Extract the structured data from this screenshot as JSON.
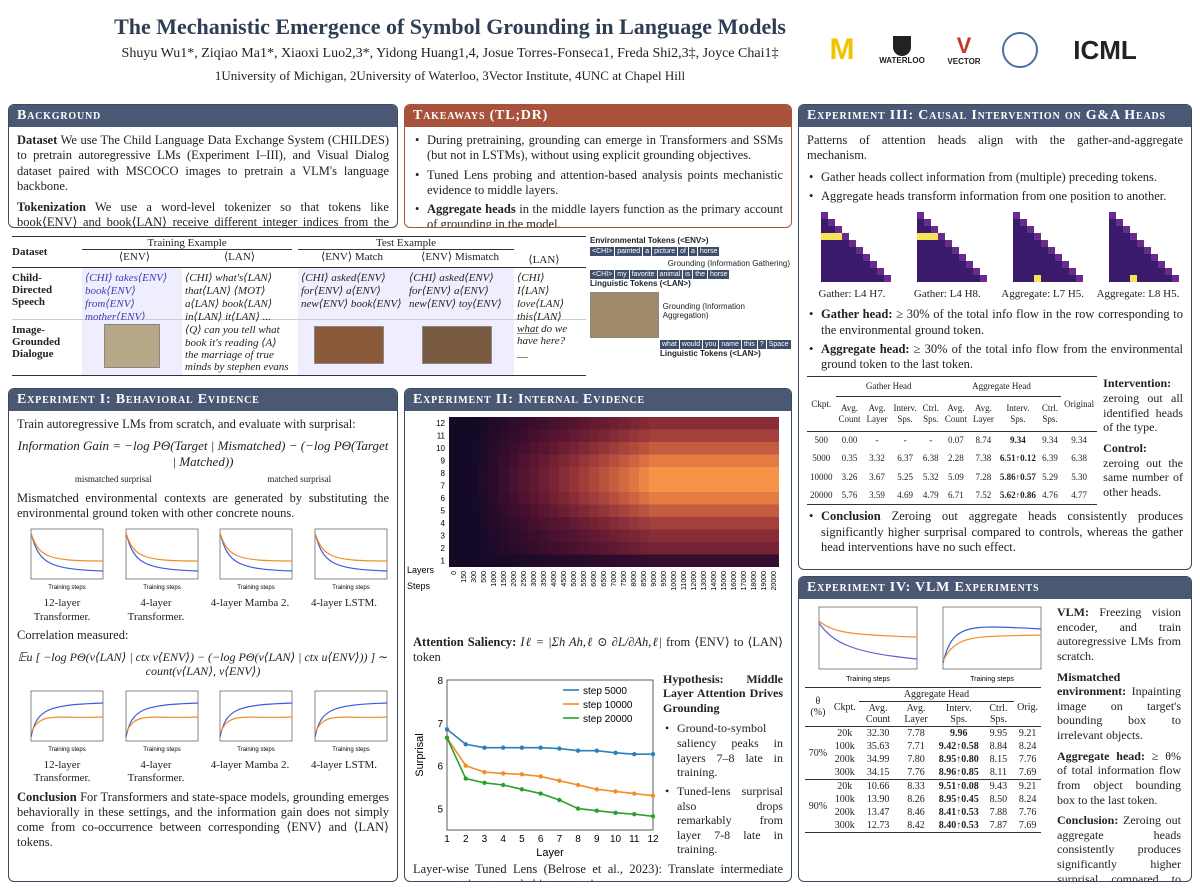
{
  "header": {
    "title": "The Mechanistic Emergence of Symbol Grounding in Language Models",
    "authors": "Shuyu Wu1*, Ziqiao Ma1*, Xiaoxi Luo2,3*, Yidong Huang1,4, Josue Torres-Fonseca1, Freda Shi2,3‡, Joyce Chai1‡",
    "affiliations": "1University of Michigan, 2University of Waterloo, 3Vector Institute, 4UNC at Chapel Hill",
    "logos": [
      "M MICHIGAN",
      "UNIVERSITY OF WATERLOO",
      "VECTOR INSTITUTE",
      "ICML"
    ],
    "icml_sub": "International Conference On Machine Learning"
  },
  "background": {
    "title": "Background",
    "dataset_label": "Dataset",
    "dataset_text": "We use The Child Language Data Exchange System (CHILDES) to pretrain autoregressive LMs (Experiment I–III), and Visual Dialog dataset paired with MSCOCO images to pretrain a VLM's language backbone.",
    "tokenization_label": "Tokenization",
    "tokenization_text": "We use a word-level tokenizer so that tokens like book⟨ENV⟩ and book⟨LAN⟩ receive different integer indices from the tokenizer, and their connections can only be learned from training alone."
  },
  "takeaways": {
    "title": "Takeaways (TL;DR)",
    "items": [
      "During pretraining, grounding can emerge in Transformers and SSMs (but not in LSTMs), without using explicit grounding objectives.",
      "Tuned Lens probing and attention-based analysis points mechanistic evidence to middle layers."
    ],
    "last_bold": "Aggregate heads",
    "last_text": "in the middle layers function as the primary account of grounding in the model."
  },
  "dataset_table": {
    "col_dataset": "Dataset",
    "training_example": "Training Example",
    "test_example": "Test Example",
    "env": "⟨ENV⟩",
    "lan": "⟨LAN⟩",
    "env_match": "⟨ENV⟩ Match",
    "env_mismatch": "⟨ENV⟩ Mismatch",
    "row1_name": "Child-Directed Speech",
    "row1_env": "⟨CHI⟩ takes⟨ENV⟩ book⟨ENV⟩ from⟨ENV⟩ mother⟨ENV⟩",
    "row1_lan": "⟨CHI⟩ what's⟨LAN⟩ that⟨LAN⟩ ⟨MOT⟩ a⟨LAN⟩ book⟨LAN⟩ in⟨LAN⟩ it⟨LAN⟩ ...",
    "row1_match": "⟨CHI⟩ asked⟨ENV⟩ for⟨ENV⟩ a⟨ENV⟩ new⟨ENV⟩ book⟨ENV⟩",
    "row1_mismatch": "⟨CHI⟩ asked⟨ENV⟩ for⟨ENV⟩ a⟨ENV⟩ new⟨ENV⟩ toy⟨ENV⟩",
    "row1_test_lan": "⟨CHI⟩ I⟨LAN⟩ love⟨LAN⟩ this⟨LAN⟩ ____",
    "row2_name": "Image-Grounded Dialogue",
    "row2_lan": "⟨Q⟩ can you tell what book it's reading ⟨A⟩ the marriage of true minds by stephen evans",
    "row2_test_lan": "what do we have here? __"
  },
  "grounding_fig": {
    "env_title": "Environmental Tokens (<ENV>)",
    "env_tokens": [
      "<CHI>",
      "painted",
      "a",
      "picture",
      "of",
      "a",
      "horse"
    ],
    "lan_tokens": [
      "<CHI>",
      "my",
      "favorite",
      "animal",
      "is",
      "the",
      "horse"
    ],
    "gathering": "Grounding (Information Gathering)",
    "lan_title": "Linguistic Tokens (<LAN>)",
    "agg": "Grounding (Information Aggregation)",
    "q_tokens": [
      "what",
      "would",
      "you",
      "name",
      "this",
      "?",
      "Space"
    ],
    "lan_title2": "Linguistic Tokens (<LAN>)"
  },
  "exp1": {
    "title": "Experiment I: Behavioral Evidence",
    "intro": "Train autoregressive LMs from scratch, and evaluate with surprisal:",
    "ig_eq": "Information Gain = −log PΘ(Target | Mismatched) − (−log PΘ(Target | Matched))",
    "mismatched_surprisal": "mismatched surprisal",
    "matched_surprisal": "matched surprisal",
    "mismatch_text": "Mismatched environmental contexts are generated by substituting the environmental ground token with other concrete nouns.",
    "captions": [
      "12-layer Transformer.",
      "4-layer Transformer.",
      "4-layer Mamba 2.",
      "4-layer LSTM."
    ],
    "legend": [
      "Match",
      "Mismatch"
    ],
    "xlabel": "Training steps",
    "ylabel": "Surprisal",
    "correlation_label": "Correlation measured:",
    "corr_eq": "𝔼u [ −log PΘ(v⟨LAN⟩ | ctx v⟨ENV⟩) − (−log PΘ(v⟨LAN⟩ | ctx u⟨ENV⟩)) ] ∼ count(v⟨LAN⟩, v⟨ENV⟩)",
    "legend2": [
      "Information gain",
      "R² value"
    ],
    "conclusion_label": "Conclusion",
    "conclusion": "For Transformers and state-space models, grounding emerges behaviorally in these settings, and the information gain does not simply come from co-occurrence between corresponding ⟨ENV⟩ and ⟨LAN⟩ tokens."
  },
  "exp2": {
    "title": "Experiment II: Internal Evidence",
    "heat_ylabel": "Layers",
    "heat_xlabel": "Steps",
    "layers": [
      "1",
      "2",
      "3",
      "4",
      "5",
      "6",
      "7",
      "8",
      "9",
      "10",
      "11",
      "12"
    ],
    "steps": [
      "0",
      "150",
      "300",
      "500",
      "1000",
      "1500",
      "2000",
      "2500",
      "3000",
      "3500",
      "4000",
      "4500",
      "5000",
      "5500",
      "6000",
      "6500",
      "7000",
      "7500",
      "8000",
      "8500",
      "9000",
      "9500",
      "10000",
      "11000",
      "12000",
      "13000",
      "14000",
      "15000",
      "16000",
      "17000",
      "18000",
      "19000",
      "20000"
    ],
    "saliency_label": "Attention Saliency:",
    "saliency_eq": "Iℓ = |Σh Ah,ℓ ⊙ ∂L/∂Ah,ℓ|",
    "saliency_tail": "from ⟨ENV⟩ to ⟨LAN⟩ token",
    "hyp_title": "Hypothesis: Middle Layer Attention Drives Grounding",
    "hyp_items": [
      "Ground-to-symbol saliency peaks in layers 7–8 late in training.",
      "Tuned-lens surprisal also drops remarkably from layer 7-8 late in training."
    ],
    "lens_caption_bold": "Tuned Lens",
    "lens_caption": "Layer-wise Tuned Lens (Belrose et al., 2023): Translate intermediate representations to verbal interpretations."
  },
  "chart_data": {
    "type": "line",
    "x": [
      1,
      2,
      3,
      4,
      5,
      6,
      7,
      8,
      9,
      10,
      11,
      12
    ],
    "xlabel": "Layer",
    "ylabel": "Surprisal",
    "ylim": [
      4.5,
      8
    ],
    "legend_position": "top-right",
    "series": [
      {
        "name": "step 5000",
        "color": "#2c7fb8",
        "values": [
          6.85,
          6.5,
          6.42,
          6.42,
          6.42,
          6.42,
          6.4,
          6.35,
          6.35,
          6.3,
          6.27,
          6.27
        ]
      },
      {
        "name": "step 10000",
        "color": "#f28c28",
        "values": [
          6.65,
          6.0,
          5.85,
          5.82,
          5.8,
          5.75,
          5.65,
          5.55,
          5.45,
          5.4,
          5.35,
          5.3
        ]
      },
      {
        "name": "step 20000",
        "color": "#2ca02c",
        "values": [
          6.65,
          5.7,
          5.6,
          5.55,
          5.45,
          5.35,
          5.2,
          5.0,
          4.95,
          4.9,
          4.87,
          4.82
        ]
      }
    ]
  },
  "exp3": {
    "title": "Experiment III: Causal Intervention on G&A Heads",
    "intro": "Patterns of attention heads align with the gather-and-aggregate mechanism.",
    "items": [
      "Gather heads collect information from (multiple) preceding tokens.",
      "Aggregate heads transform information from one position to another."
    ],
    "heat_captions": [
      "Gather: L4 H7.",
      "Gather: L4 H8.",
      "Aggregate: L7 H5.",
      "Aggregate: L8 H5."
    ],
    "gather_label": "Gather head:",
    "gather_text": "≥ 30% of the total info flow in the row corresponding to the environmental ground token.",
    "agg_label": "Aggregate head:",
    "agg_text": "≥ 30% of the total info flow from the environmental ground token to the last token.",
    "table_head": [
      "Ckpt.",
      "Gather Head",
      "Aggregate Head",
      "Original"
    ],
    "table_sub": [
      "Avg. Count",
      "Avg. Layer",
      "Interv. Sps.",
      "Ctrl. Sps.",
      "Avg. Count",
      "Avg. Layer",
      "Interv. Sps.",
      "Ctrl. Sps."
    ],
    "rows": [
      [
        "500",
        "0.00",
        "-",
        "-",
        "-",
        "0.07",
        "8.74",
        "9.34",
        "9.34",
        "9.34"
      ],
      [
        "5000",
        "0.35",
        "3.32",
        "6.37",
        "6.38",
        "2.28",
        "7.38",
        "6.51↑0.12",
        "6.39",
        "6.38"
      ],
      [
        "10000",
        "3.26",
        "3.67",
        "5.25",
        "5.32",
        "5.09",
        "7.28",
        "5.86↑0.57",
        "5.29",
        "5.30"
      ],
      [
        "20000",
        "5.76",
        "3.59",
        "4.69",
        "4.79",
        "6.71",
        "7.52",
        "5.62↑0.86",
        "4.76",
        "4.77"
      ]
    ],
    "intervention_label": "Intervention:",
    "intervention_text": "zeroing out all identified heads of the type.",
    "control_label": "Control:",
    "control_text": "zeroing out the same number of other heads.",
    "conclusion_label": "Conclusion",
    "conclusion": "Zeroing out aggregate heads consistently produces significantly higher surprisal compared to controls, whereas the gather head interventions have no such effect."
  },
  "exp4": {
    "title": "Experiment IV: VLM Experiments",
    "legend": [
      "Match",
      "Mismatch"
    ],
    "legend2": [
      "Information gain",
      "R² value"
    ],
    "xlabel": "Training steps",
    "vlm_label": "VLM:",
    "vlm_text": "Freezing vision encoder, and train autoregressive LMs from scratch.",
    "mis_label": "Mismatched environment:",
    "mis_text": "Inpainting image on target's bounding box to irrelevant objects.",
    "agg_label": "Aggregate head:",
    "agg_text": "≥ θ% of total information flow from object bounding box to the last token.",
    "concl_label": "Conclusion:",
    "concl_text": "Zeroing out aggregate heads consistently produces significantly higher surprisal compared to controls.",
    "table_head": [
      "θ (%)",
      "Ckpt.",
      "Aggregate Head",
      "Orig."
    ],
    "table_sub": [
      "Avg. Count",
      "Avg. Layer",
      "Interv. Sps.",
      "Ctrl. Sps."
    ],
    "groups": [
      {
        "theta": "70%",
        "rows": [
          [
            "20k",
            "32.30",
            "7.78",
            "9.96",
            "9.95",
            "9.21"
          ],
          [
            "100k",
            "35.63",
            "7.71",
            "9.42↑0.58",
            "8.84",
            "8.24"
          ],
          [
            "200k",
            "34.99",
            "7.80",
            "8.95↑0.80",
            "8.15",
            "7.76"
          ],
          [
            "300k",
            "34.15",
            "7.76",
            "8.96↑0.85",
            "8.11",
            "7.69"
          ]
        ]
      },
      {
        "theta": "90%",
        "rows": [
          [
            "20k",
            "10.66",
            "8.33",
            "9.51↑0.08",
            "9.43",
            "9.21"
          ],
          [
            "100k",
            "13.90",
            "8.26",
            "8.95↑0.45",
            "8.50",
            "8.24"
          ],
          [
            "200k",
            "13.47",
            "8.46",
            "8.41↑0.53",
            "7.88",
            "7.76"
          ],
          [
            "300k",
            "12.73",
            "8.42",
            "8.40↑0.53",
            "7.87",
            "7.69"
          ]
        ]
      }
    ]
  }
}
